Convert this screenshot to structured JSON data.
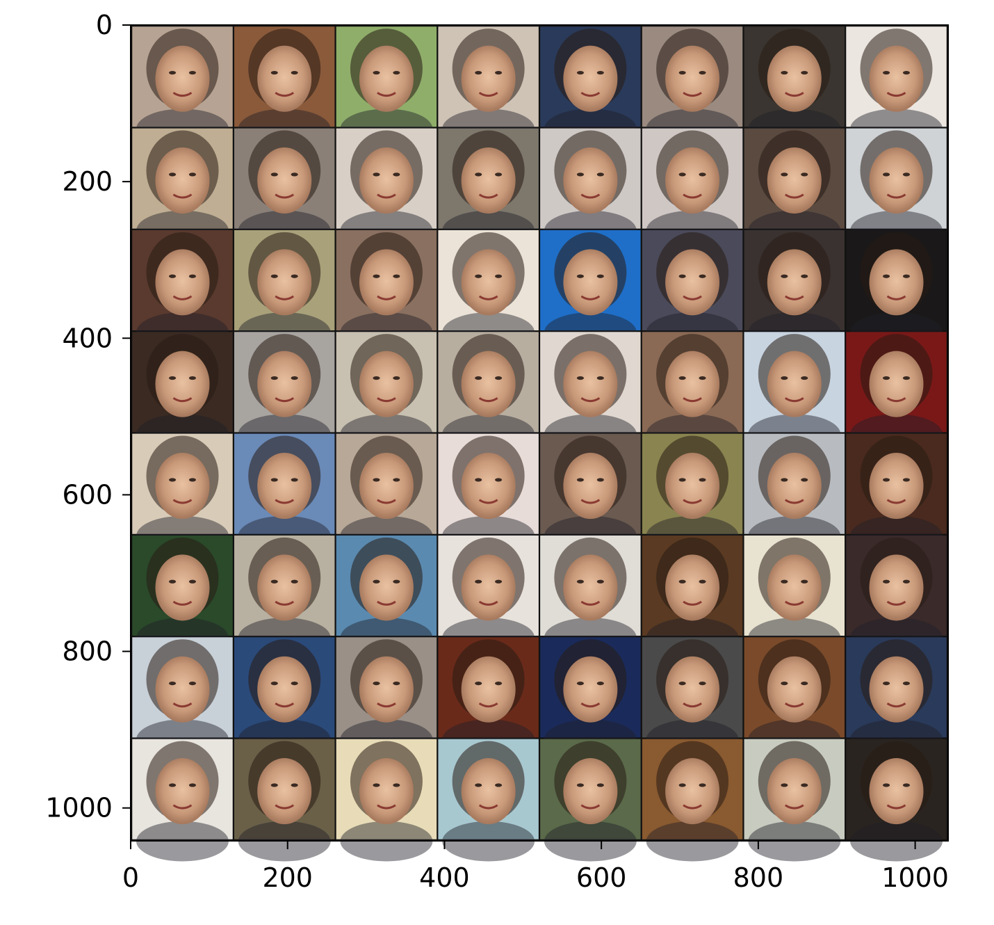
{
  "chart_data": {
    "type": "image-grid",
    "title": "",
    "xlabel": "",
    "ylabel": "",
    "xlim": [
      0,
      1042
    ],
    "ylim": [
      1042,
      0
    ],
    "x_ticks": [
      0,
      200,
      400,
      600,
      800,
      1000
    ],
    "y_ticks": [
      0,
      200,
      400,
      600,
      800,
      1000
    ],
    "x_tick_labels": [
      "0",
      "200",
      "400",
      "600",
      "800",
      "1000"
    ],
    "y_tick_labels": [
      "0",
      "200",
      "400",
      "600",
      "800",
      "1000"
    ],
    "grid": false,
    "rows": 8,
    "cols": 8,
    "tile_size": 128,
    "tile_gap": 2,
    "content": "generated face portraits",
    "tile_colors": [
      [
        "#b7a393",
        "#8a5a3a",
        "#8fae6a",
        "#cfc3b6",
        "#2a3a5a",
        "#9a8a80",
        "#3a3530",
        "#ece6e0"
      ],
      [
        "#bfae93",
        "#8a8078",
        "#d8cfc6",
        "#7d776c",
        "#cfc9c6",
        "#cfc7c4",
        "#5a4a40",
        "#cfd3d6"
      ],
      [
        "#5a3a2e",
        "#a8a17a",
        "#8a7060",
        "#ece3d8",
        "#1f6fc8",
        "#4a4a5a",
        "#3a3230",
        "#1a1818"
      ],
      [
        "#3a2a22",
        "#a8a4a0",
        "#c8c0b0",
        "#b8aea0",
        "#e0d8d0",
        "#8a6a55",
        "#c8d4e0",
        "#7a1818"
      ],
      [
        "#d8cbb8",
        "#6a8ab8",
        "#b8a898",
        "#e8dcd8",
        "#6a5a50",
        "#8a8450",
        "#b8bcc0",
        "#4a2a1e"
      ],
      [
        "#2a4a2a",
        "#b8b0a0",
        "#5a8ab0",
        "#e8e2dc",
        "#e0dcd6",
        "#5a3a22",
        "#e8e2d0",
        "#3a2a2a"
      ],
      [
        "#c8d0d8",
        "#2a4a7a",
        "#9a9088",
        "#6a2a1a",
        "#1a2a5a",
        "#4a4a4a",
        "#7a4a2a",
        "#2a3a5a"
      ],
      [
        "#e8e4de",
        "#6a6048",
        "#e8dcb8",
        "#a8c8d0",
        "#5a6a4a",
        "#8a5a30",
        "#c8ccc0",
        "#2a2420"
      ]
    ]
  }
}
